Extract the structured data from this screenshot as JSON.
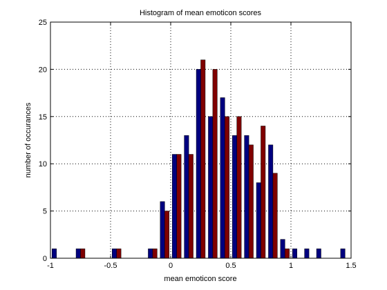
{
  "chart_data": {
    "type": "bar",
    "title": "Histogram of mean emoticon scores",
    "xlabel": "mean emoticon score",
    "ylabel": "number of occurances",
    "xlim": [
      -1,
      1.5
    ],
    "ylim": [
      0,
      25
    ],
    "xticks": [
      -1,
      -0.5,
      0,
      0.5,
      1,
      1.5
    ],
    "yticks": [
      0,
      5,
      10,
      15,
      20,
      25
    ],
    "xtick_labels": [
      "-1",
      "-0.5",
      "0",
      "0.5",
      "1",
      "1.5"
    ],
    "ytick_labels": [
      "0",
      "5",
      "10",
      "15",
      "20",
      "25"
    ],
    "grid": true,
    "bin_width": 0.1,
    "x": [
      -0.95,
      -0.85,
      -0.75,
      -0.65,
      -0.55,
      -0.45,
      -0.35,
      -0.25,
      -0.15,
      -0.05,
      0.05,
      0.15,
      0.25,
      0.35,
      0.45,
      0.55,
      0.65,
      0.75,
      0.85,
      0.95,
      1.05,
      1.15,
      1.25,
      1.35,
      1.45
    ],
    "series": [
      {
        "color": "#00007f",
        "values": [
          1,
          0,
          1,
          0,
          0,
          1,
          0,
          0,
          1,
          6,
          11,
          13,
          20,
          15,
          17,
          13,
          13,
          8,
          12,
          2,
          1,
          1,
          1,
          0,
          1
        ]
      },
      {
        "color": "#7f0000",
        "values": [
          0,
          0,
          1,
          0,
          0,
          1,
          0,
          0,
          1,
          5,
          11,
          11,
          21,
          20,
          15,
          15,
          12,
          14,
          9,
          1,
          0,
          0,
          0,
          0,
          0
        ]
      }
    ]
  }
}
